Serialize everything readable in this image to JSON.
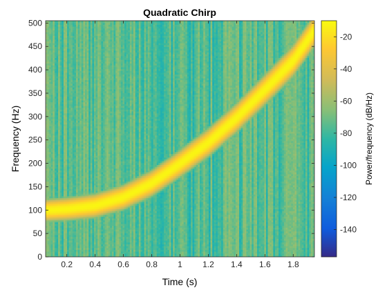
{
  "chart_data": {
    "type": "heatmap",
    "title": "Quadratic Chirp",
    "xlabel": "Time (s)",
    "ylabel": "Frequency (Hz)",
    "colorbar_label": "Power/frequency (dB/Hz)",
    "xlim": [
      0.05,
      1.95
    ],
    "ylim": [
      0,
      505
    ],
    "clim": [
      -157,
      -10
    ],
    "x_ticks": [
      0.2,
      0.4,
      0.6,
      0.8,
      1,
      1.2,
      1.4,
      1.6,
      1.8
    ],
    "x_tick_labels": [
      "0.2",
      "0.4",
      "0.6",
      "0.8",
      "1",
      "1.2",
      "1.4",
      "1.6",
      "1.8"
    ],
    "y_ticks": [
      0,
      50,
      100,
      150,
      200,
      250,
      300,
      350,
      400,
      450,
      500
    ],
    "y_tick_labels": [
      "0",
      "50",
      "100",
      "150",
      "200",
      "250",
      "300",
      "350",
      "400",
      "450",
      "500"
    ],
    "colorbar_ticks": [
      -20,
      -40,
      -60,
      -80,
      -100,
      -120,
      -140
    ],
    "colorbar_tick_labels": [
      "-20",
      "-40",
      "-60",
      "-80",
      "-100",
      "-120",
      "-140"
    ],
    "colormap": "parula",
    "ridge": {
      "description": "peak power along chirp",
      "points": [
        {
          "t": 0.05,
          "f": 100
        },
        {
          "t": 0.2,
          "f": 103
        },
        {
          "t": 0.4,
          "f": 110
        },
        {
          "t": 0.6,
          "f": 128
        },
        {
          "t": 0.8,
          "f": 158
        },
        {
          "t": 1.0,
          "f": 200
        },
        {
          "t": 1.2,
          "f": 245
        },
        {
          "t": 1.4,
          "f": 298
        },
        {
          "t": 1.6,
          "f": 358
        },
        {
          "t": 1.8,
          "f": 420
        },
        {
          "t": 1.95,
          "f": 485
        }
      ],
      "peak_power_db": -12,
      "background_power_db": [
        -65,
        -90
      ]
    },
    "grid": false,
    "colorbar_position": "right"
  }
}
